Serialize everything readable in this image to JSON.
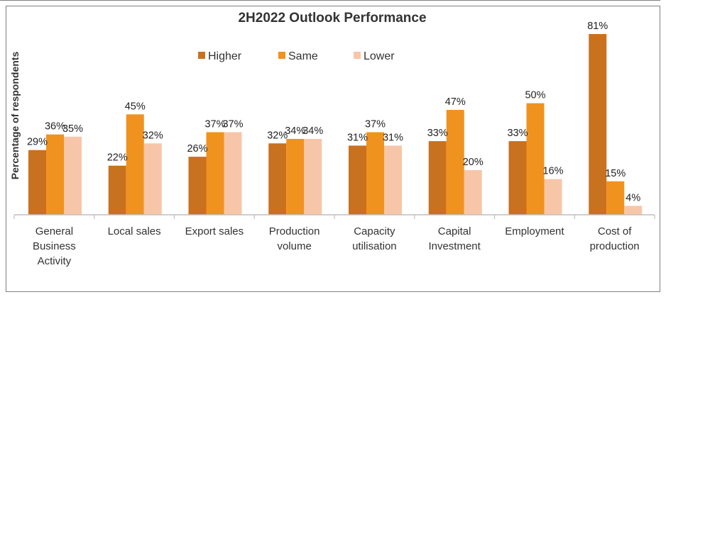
{
  "chart_data": {
    "type": "bar",
    "title": "2H2022 Outlook Performance",
    "ylabel": "Percentage of respondents",
    "xlabel": "",
    "ylim": [
      0,
      84
    ],
    "grid": false,
    "legend_placement": "top-center",
    "categories": [
      [
        "General",
        "Business",
        "Activity"
      ],
      [
        "Local sales"
      ],
      [
        "Export sales"
      ],
      [
        "Production",
        "volume"
      ],
      [
        "Capacity",
        "utilisation"
      ],
      [
        "Capital",
        "Investment"
      ],
      [
        "Employment"
      ],
      [
        "Cost of",
        "production"
      ]
    ],
    "series": [
      {
        "name": "Higher",
        "color": "#c8711f",
        "values": [
          29,
          22,
          26,
          32,
          31,
          33,
          33,
          81
        ]
      },
      {
        "name": "Same",
        "color": "#f0921e",
        "values": [
          36,
          45,
          37,
          34,
          37,
          47,
          50,
          15
        ]
      },
      {
        "name": "Lower",
        "color": "#f7c6a8",
        "values": [
          35,
          32,
          37,
          34,
          31,
          20,
          16,
          4
        ]
      }
    ],
    "value_suffix": "%"
  }
}
